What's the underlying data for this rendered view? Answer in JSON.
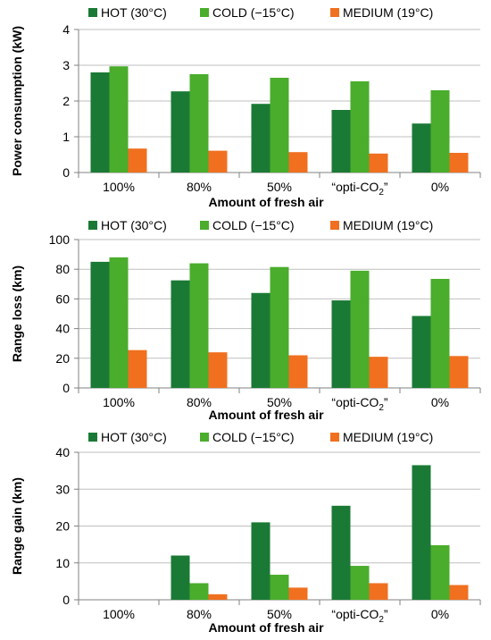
{
  "colors": {
    "hot": "#1a7a35",
    "cold": "#4aad2c",
    "medium": "#f07020",
    "grid": "#bfbfbf",
    "axis": "#808080"
  },
  "chart_data": [
    {
      "type": "bar",
      "title": "",
      "ylabel": "Power consumption (kW)",
      "xlabel": "Amount of fresh air",
      "categories": [
        "100%",
        "80%",
        "50%",
        "“opti-CO2”",
        "0%"
      ],
      "ylim": [
        0,
        4
      ],
      "ytick_step": 1,
      "grid": true,
      "legend": "top",
      "series": [
        {
          "name": "HOT (30°C)",
          "color_key": "hot",
          "values": [
            2.8,
            2.27,
            1.92,
            1.75,
            1.37
          ]
        },
        {
          "name": "COLD (−15°C)",
          "color_key": "cold",
          "values": [
            2.97,
            2.75,
            2.65,
            2.55,
            2.3
          ]
        },
        {
          "name": "MEDIUM (19°C)",
          "color_key": "medium",
          "values": [
            0.67,
            0.61,
            0.57,
            0.53,
            0.55
          ]
        }
      ]
    },
    {
      "type": "bar",
      "title": "",
      "ylabel": "Range loss (km)",
      "xlabel": "Amount of fresh air",
      "categories": [
        "100%",
        "80%",
        "50%",
        "“opti-CO2”",
        "0%"
      ],
      "ylim": [
        0,
        100
      ],
      "ytick_step": 20,
      "grid": true,
      "legend": "top",
      "series": [
        {
          "name": "HOT (30°C)",
          "color_key": "hot",
          "values": [
            85,
            72.5,
            64,
            59,
            48.5
          ]
        },
        {
          "name": "COLD (−15°C)",
          "color_key": "cold",
          "values": [
            88,
            84,
            81.5,
            79,
            73.5
          ]
        },
        {
          "name": "MEDIUM (19°C)",
          "color_key": "medium",
          "values": [
            25.5,
            24,
            22,
            21,
            21.5
          ]
        }
      ]
    },
    {
      "type": "bar",
      "title": "",
      "ylabel": "Range gain (km)",
      "xlabel": "Amount of fresh air",
      "categories": [
        "100%",
        "80%",
        "50%",
        "“opti-CO2”",
        "0%"
      ],
      "ylim": [
        0,
        40
      ],
      "ytick_step": 10,
      "grid": true,
      "legend": "top",
      "series": [
        {
          "name": "HOT (30°C)",
          "color_key": "hot",
          "values": [
            0,
            12,
            21,
            25.5,
            36.5
          ]
        },
        {
          "name": "COLD (−15°C)",
          "color_key": "cold",
          "values": [
            0,
            4.5,
            6.8,
            9.2,
            14.8
          ]
        },
        {
          "name": "MEDIUM (19°C)",
          "color_key": "medium",
          "values": [
            0,
            1.5,
            3.3,
            4.5,
            4
          ]
        }
      ]
    }
  ]
}
